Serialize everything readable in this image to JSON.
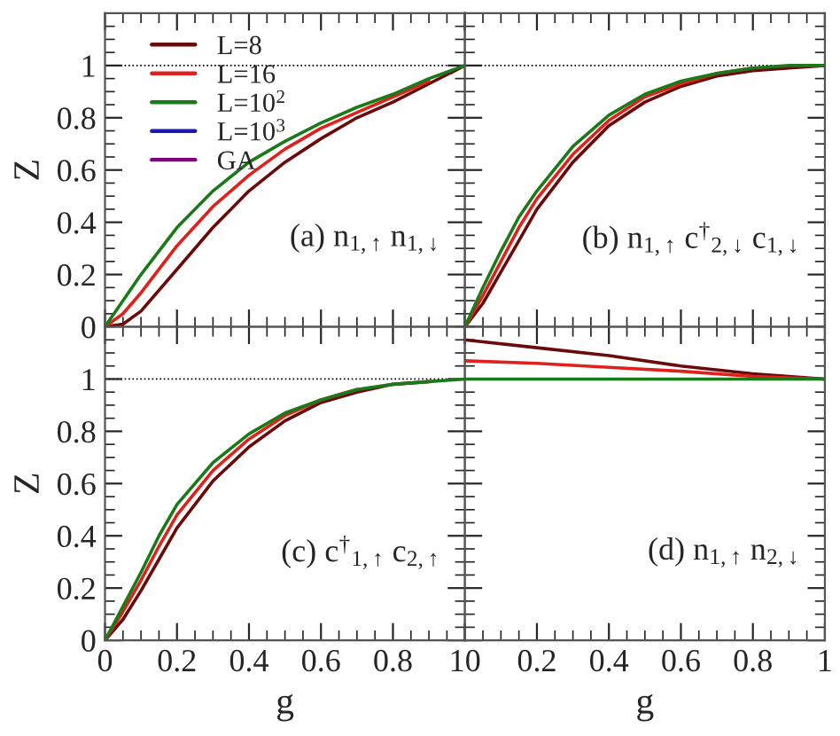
{
  "chart_data": [
    {
      "type": "line",
      "ylabel": "Z",
      "xlim": [
        0,
        1
      ],
      "ylim": [
        0,
        1.2
      ],
      "xticks": [
        0,
        0.2,
        0.4,
        0.6,
        0.8,
        1
      ],
      "yticks": [
        0,
        0.2,
        0.4,
        0.6,
        0.8,
        1
      ],
      "tick_labels": "y",
      "legend": "top left",
      "grid": false,
      "x": [
        0,
        0.05,
        0.1,
        0.2,
        0.3,
        0.4,
        0.5,
        0.6,
        0.7,
        0.8,
        0.9,
        1
      ],
      "annotations": [
        "(a) n$_{1,↑}$ n$_{1,↓}$"
      ],
      "ref_lines": [
        {
          "axis": "y",
          "value": 1,
          "color": "#000000",
          "line_style": "dotted"
        }
      ],
      "series": [
        {
          "name": "L=8",
          "color": "#6b0a0a",
          "values": [
            0,
            0.01,
            0.06,
            0.22,
            0.38,
            0.52,
            0.63,
            0.72,
            0.8,
            0.86,
            0.93,
            1
          ]
        },
        {
          "name": "L=16",
          "color": "#e0201c",
          "values": [
            0,
            0.05,
            0.13,
            0.31,
            0.46,
            0.58,
            0.68,
            0.76,
            0.82,
            0.88,
            0.94,
            null
          ]
        },
        {
          "name": "L=10$^{2}$",
          "color": "#1a7a1a",
          "values": [
            0,
            0.1,
            0.2,
            0.38,
            0.52,
            0.63,
            0.71,
            0.78,
            0.84,
            0.89,
            0.95,
            1
          ]
        },
        {
          "name": "L=10$^{3}$",
          "color": "#1a1ab0",
          "values": [
            null,
            null,
            null,
            null,
            null,
            null,
            null,
            null,
            null,
            null,
            null,
            null
          ]
        },
        {
          "name": "GA",
          "color": "#800080",
          "values": [
            null,
            null,
            null,
            null,
            null,
            null,
            null,
            null,
            null,
            null,
            null,
            null
          ]
        }
      ]
    },
    {
      "type": "line",
      "xlim": [
        0,
        1
      ],
      "ylim": [
        0,
        1.2
      ],
      "xticks": [
        0,
        0.2,
        0.4,
        0.6,
        0.8,
        1
      ],
      "yticks": [
        0,
        0.2,
        0.4,
        0.6,
        0.8,
        1
      ],
      "tick_labels": false,
      "grid": false,
      "x": [
        0,
        0.05,
        0.1,
        0.15,
        0.2,
        0.3,
        0.4,
        0.5,
        0.6,
        0.7,
        0.8,
        0.9,
        1
      ],
      "annotations": [
        "(b) n$_{1,↑}$ c$^{†}$$_{2,↓}$ c$_{1,↓}$"
      ],
      "ref_lines": [
        {
          "axis": "y",
          "value": 1,
          "color": "#000000",
          "line_style": "dotted"
        }
      ],
      "series": [
        {
          "color": "#6b0a0a",
          "values": [
            0,
            0.09,
            0.21,
            0.33,
            0.45,
            0.63,
            0.77,
            0.86,
            0.92,
            0.96,
            0.98,
            0.99,
            1
          ]
        },
        {
          "color": "#e0201c",
          "values": [
            0,
            0.12,
            0.25,
            0.38,
            0.49,
            0.66,
            0.79,
            0.88,
            0.93,
            0.97,
            0.99,
            null,
            null
          ]
        },
        {
          "color": "#1a7a1a",
          "values": [
            0,
            0.15,
            0.29,
            0.42,
            0.52,
            0.69,
            0.81,
            0.89,
            0.94,
            0.97,
            0.99,
            1.0,
            1
          ]
        }
      ]
    },
    {
      "type": "line",
      "xlabel": "g",
      "ylabel": "Z",
      "xlim": [
        0,
        1
      ],
      "ylim": [
        0,
        1.2
      ],
      "xticks": [
        0,
        0.2,
        0.4,
        0.6,
        0.8,
        1
      ],
      "yticks": [
        0,
        0.2,
        0.4,
        0.6,
        0.8,
        1
      ],
      "grid": false,
      "x": [
        0,
        0.05,
        0.1,
        0.15,
        0.2,
        0.3,
        0.4,
        0.5,
        0.6,
        0.7,
        0.8,
        0.9,
        1
      ],
      "annotations": [
        "(c) c$^{†}$$_{1,↑}$ c$_{2,↑}$"
      ],
      "ref_lines": [
        {
          "axis": "y",
          "value": 1,
          "color": "#000000",
          "line_style": "dotted"
        }
      ],
      "series": [
        {
          "color": "#6b0a0a",
          "values": [
            0,
            0.08,
            0.19,
            0.31,
            0.43,
            0.61,
            0.74,
            0.84,
            0.91,
            0.95,
            0.98,
            0.99,
            null
          ]
        },
        {
          "color": "#e0201c",
          "values": [
            0,
            0.11,
            0.23,
            0.36,
            0.48,
            0.65,
            0.77,
            0.86,
            0.92,
            0.96,
            null,
            null,
            null
          ]
        },
        {
          "color": "#1a7a1a",
          "values": [
            0,
            0.13,
            0.26,
            0.4,
            0.52,
            0.68,
            0.79,
            0.87,
            0.92,
            0.96,
            0.98,
            0.99,
            1
          ]
        }
      ]
    },
    {
      "type": "line",
      "xlabel": "g",
      "xlim": [
        0,
        1
      ],
      "ylim": [
        0,
        1.2
      ],
      "xticks": [
        0,
        0.2,
        0.4,
        0.6,
        0.8,
        1
      ],
      "yticks": [
        0,
        0.2,
        0.4,
        0.6,
        0.8,
        1
      ],
      "tick_labels": "x",
      "grid": false,
      "x": [
        0,
        0.2,
        0.4,
        0.6,
        0.8,
        1
      ],
      "annotations": [
        "(d) n$_{1,↑}$ n$_{2,↓}$"
      ],
      "series": [
        {
          "color": "#6b0a0a",
          "values": [
            1.15,
            1.12,
            1.09,
            1.05,
            1.02,
            1.0
          ]
        },
        {
          "color": "#e0201c",
          "values": [
            1.07,
            1.06,
            1.045,
            1.03,
            1.01,
            1.0
          ]
        },
        {
          "color": "#1a7a1a",
          "values": [
            1.0,
            1.0,
            1.0,
            1.0,
            1.0,
            1.0
          ]
        }
      ]
    }
  ]
}
